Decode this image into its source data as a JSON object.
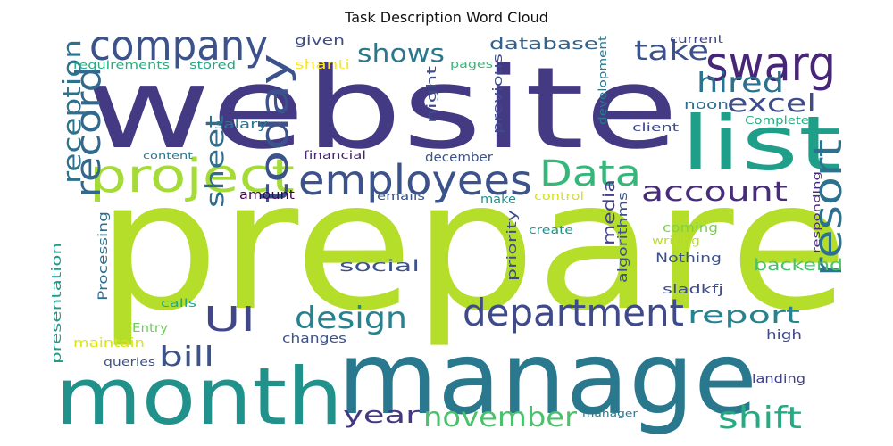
{
  "title": "Task Description Word Cloud",
  "words": [
    {
      "text": "prepare",
      "color": "#b5de2b"
    },
    {
      "text": "website",
      "color": "#443983"
    },
    {
      "text": "manage",
      "color": "#2a788e"
    },
    {
      "text": "month",
      "color": "#21918c"
    },
    {
      "text": "list",
      "color": "#1f9e89"
    },
    {
      "text": "project",
      "color": "#a5db36"
    },
    {
      "text": "company",
      "color": "#3b528b"
    },
    {
      "text": "swarg",
      "color": "#482677"
    },
    {
      "text": "employees",
      "color": "#3b528b"
    },
    {
      "text": "Data",
      "color": "#35b779"
    },
    {
      "text": "department",
      "color": "#3e4a89"
    },
    {
      "text": "resort",
      "color": "#2c728e"
    },
    {
      "text": "today",
      "color": "#3b528b"
    },
    {
      "text": "record",
      "color": "#31688e"
    },
    {
      "text": "UI",
      "color": "#404688"
    },
    {
      "text": "design",
      "color": "#26828e"
    },
    {
      "text": "account",
      "color": "#472c7a"
    },
    {
      "text": "november",
      "color": "#4ac16d"
    },
    {
      "text": "shift",
      "color": "#25ab82"
    },
    {
      "text": "excel",
      "color": "#3e4c8a"
    },
    {
      "text": "take",
      "color": "#3b528b"
    },
    {
      "text": "hired",
      "color": "#2c728e"
    },
    {
      "text": "shows",
      "color": "#2a788e"
    },
    {
      "text": "reception",
      "color": "#2c728e"
    },
    {
      "text": "report",
      "color": "#26828e"
    },
    {
      "text": "sheet",
      "color": "#2f6c8e"
    },
    {
      "text": "year",
      "color": "#453882"
    },
    {
      "text": "bill",
      "color": "#3b528b"
    },
    {
      "text": "backend",
      "color": "#4ac16d"
    },
    {
      "text": "social",
      "color": "#3b528b"
    },
    {
      "text": "database",
      "color": "#33638d"
    },
    {
      "text": "media",
      "color": "#424086"
    },
    {
      "text": "algorithms",
      "color": "#3b528b"
    },
    {
      "text": "previous",
      "color": "#3e4c8a"
    },
    {
      "text": "priority",
      "color": "#3e4c8a"
    },
    {
      "text": "Processing",
      "color": "#2e6f8e"
    },
    {
      "text": "presentation",
      "color": "#1f9a8a"
    },
    {
      "text": "night",
      "color": "#3d4e8a"
    },
    {
      "text": "given",
      "color": "#3e4c8a"
    },
    {
      "text": "shanti",
      "color": "#fde725"
    },
    {
      "text": "requirements",
      "color": "#27ad81"
    },
    {
      "text": "stored",
      "color": "#22a785"
    },
    {
      "text": "pages",
      "color": "#37b878"
    },
    {
      "text": "current",
      "color": "#414487"
    },
    {
      "text": "development",
      "color": "#2a788e"
    },
    {
      "text": "noon",
      "color": "#2e6e8e"
    },
    {
      "text": "client",
      "color": "#3e4a89"
    },
    {
      "text": "Complete",
      "color": "#26ad81"
    },
    {
      "text": "salary",
      "color": "#2a788e"
    },
    {
      "text": "content",
      "color": "#2a788e"
    },
    {
      "text": "financial",
      "color": "#482475"
    },
    {
      "text": "december",
      "color": "#3b528b"
    },
    {
      "text": "amount",
      "color": "#440154"
    },
    {
      "text": "emails",
      "color": "#3b528b"
    },
    {
      "text": "control",
      "color": "#d8e219"
    },
    {
      "text": "make",
      "color": "#21918c"
    },
    {
      "text": "responding",
      "color": "#472c7a"
    },
    {
      "text": "coming",
      "color": "#7ad151"
    },
    {
      "text": "create",
      "color": "#21918c"
    },
    {
      "text": "writing",
      "color": "#bddf26"
    },
    {
      "text": "Nothing",
      "color": "#3b528b"
    },
    {
      "text": "sladkfj",
      "color": "#3e4c8a"
    },
    {
      "text": "Entry",
      "color": "#6ccd5a"
    },
    {
      "text": "calls",
      "color": "#22a785"
    },
    {
      "text": "maintain",
      "color": "#dde318"
    },
    {
      "text": "changes",
      "color": "#3b528b"
    },
    {
      "text": "queries",
      "color": "#3b528b"
    },
    {
      "text": "high",
      "color": "#3e4a89"
    },
    {
      "text": "landing",
      "color": "#424086"
    },
    {
      "text": "manager",
      "color": "#2a788e"
    }
  ]
}
